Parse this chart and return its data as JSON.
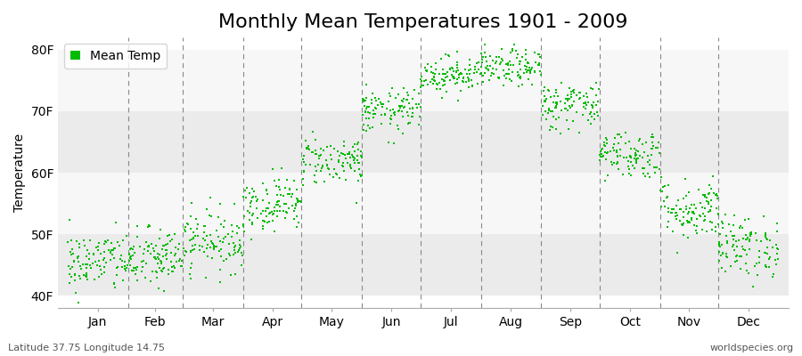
{
  "title": "Monthly Mean Temperatures 1901 - 2009",
  "ylabel": "Temperature",
  "xlabel_labels": [
    "Jan",
    "Feb",
    "Mar",
    "Apr",
    "May",
    "Jun",
    "Jul",
    "Aug",
    "Sep",
    "Oct",
    "Nov",
    "Dec"
  ],
  "ytick_labels": [
    "40F",
    "50F",
    "60F",
    "70F",
    "80F"
  ],
  "ytick_values": [
    40,
    50,
    60,
    70,
    80
  ],
  "ylim": [
    38,
    82
  ],
  "dot_color": "#00BB00",
  "dot_size": 3,
  "legend_label": "Mean Temp",
  "bottom_left": "Latitude 37.75 Longitude 14.75",
  "bottom_right": "worldspecies.org",
  "title_fontsize": 16,
  "label_fontsize": 10,
  "tick_fontsize": 10,
  "monthly_means": [
    45.5,
    46.0,
    49.0,
    55.0,
    62.0,
    70.0,
    76.0,
    77.0,
    71.0,
    63.0,
    54.0,
    48.0
  ],
  "monthly_stds": [
    2.5,
    2.5,
    2.5,
    2.2,
    2.0,
    1.8,
    1.5,
    1.5,
    2.0,
    2.0,
    2.5,
    2.5
  ],
  "n_years": 109,
  "background_color": "#ffffff",
  "band_colors": [
    "#ebebeb",
    "#f7f7f7"
  ],
  "vline_color": "#888888",
  "month_days": [
    31,
    28,
    31,
    30,
    31,
    30,
    31,
    31,
    30,
    31,
    30,
    31
  ]
}
